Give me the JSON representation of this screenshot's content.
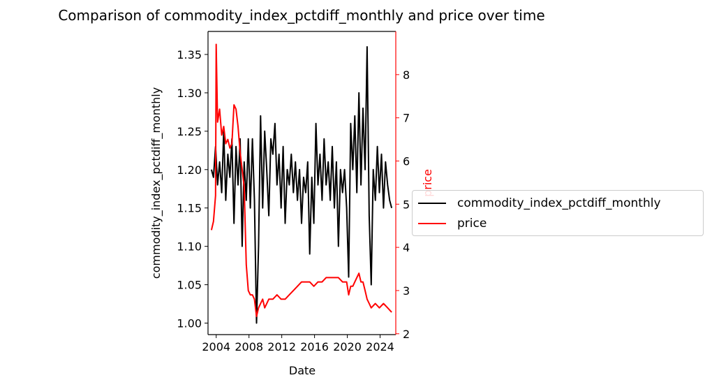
{
  "title": "Comparison of commodity_index_pctdiff_monthly and price over time",
  "chart_data": {
    "type": "line",
    "title": "Comparison of commodity_index_pctdiff_monthly and price over time",
    "xlabel": "Date",
    "ylabel": "commodity_index_pctdiff_monthly",
    "y2label": "price",
    "x_ticks": [
      "2004",
      "2008",
      "2012",
      "2016",
      "2020",
      "2024"
    ],
    "x_range": [
      "2003-01",
      "2025-12"
    ],
    "ylim": [
      0.985,
      1.38
    ],
    "y_ticks": [
      "1.00",
      "1.05",
      "1.10",
      "1.15",
      "1.20",
      "1.25",
      "1.30",
      "1.35"
    ],
    "y2lim": [
      1.98,
      9.0
    ],
    "y2_ticks": [
      "2",
      "3",
      "4",
      "5",
      "6",
      "7",
      "8"
    ],
    "legend_position": "right (outside plot)",
    "series": [
      {
        "name": "commodity_index_pctdiff_monthly",
        "axis": "left",
        "color": "#000000",
        "points": [
          [
            "2003-06",
            1.2
          ],
          [
            "2003-09",
            1.19
          ],
          [
            "2003-12",
            1.23
          ],
          [
            "2004-03",
            1.18
          ],
          [
            "2004-06",
            1.21
          ],
          [
            "2004-09",
            1.17
          ],
          [
            "2004-12",
            1.25
          ],
          [
            "2005-03",
            1.16
          ],
          [
            "2005-06",
            1.22
          ],
          [
            "2005-09",
            1.19
          ],
          [
            "2005-12",
            1.24
          ],
          [
            "2006-03",
            1.13
          ],
          [
            "2006-06",
            1.23
          ],
          [
            "2006-09",
            1.18
          ],
          [
            "2006-12",
            1.24
          ],
          [
            "2007-03",
            1.1
          ],
          [
            "2007-06",
            1.21
          ],
          [
            "2007-09",
            1.16
          ],
          [
            "2007-12",
            1.24
          ],
          [
            "2008-03",
            1.15
          ],
          [
            "2008-06",
            1.24
          ],
          [
            "2008-09",
            1.16
          ],
          [
            "2008-12",
            1.0
          ],
          [
            "2009-03",
            1.1
          ],
          [
            "2009-06",
            1.27
          ],
          [
            "2009-09",
            1.15
          ],
          [
            "2009-12",
            1.25
          ],
          [
            "2010-03",
            1.2
          ],
          [
            "2010-06",
            1.14
          ],
          [
            "2010-09",
            1.24
          ],
          [
            "2010-12",
            1.22
          ],
          [
            "2011-03",
            1.26
          ],
          [
            "2011-06",
            1.18
          ],
          [
            "2011-09",
            1.22
          ],
          [
            "2011-12",
            1.15
          ],
          [
            "2012-03",
            1.23
          ],
          [
            "2012-06",
            1.13
          ],
          [
            "2012-09",
            1.2
          ],
          [
            "2012-12",
            1.18
          ],
          [
            "2013-03",
            1.22
          ],
          [
            "2013-06",
            1.17
          ],
          [
            "2013-09",
            1.21
          ],
          [
            "2013-12",
            1.16
          ],
          [
            "2014-03",
            1.2
          ],
          [
            "2014-06",
            1.13
          ],
          [
            "2014-09",
            1.19
          ],
          [
            "2014-12",
            1.17
          ],
          [
            "2015-03",
            1.21
          ],
          [
            "2015-06",
            1.09
          ],
          [
            "2015-09",
            1.19
          ],
          [
            "2015-12",
            1.13
          ],
          [
            "2016-03",
            1.26
          ],
          [
            "2016-06",
            1.18
          ],
          [
            "2016-09",
            1.22
          ],
          [
            "2016-12",
            1.16
          ],
          [
            "2017-03",
            1.24
          ],
          [
            "2017-06",
            1.18
          ],
          [
            "2017-09",
            1.21
          ],
          [
            "2017-12",
            1.16
          ],
          [
            "2018-03",
            1.23
          ],
          [
            "2018-06",
            1.15
          ],
          [
            "2018-09",
            1.21
          ],
          [
            "2018-12",
            1.1
          ],
          [
            "2019-03",
            1.2
          ],
          [
            "2019-06",
            1.17
          ],
          [
            "2019-09",
            1.2
          ],
          [
            "2019-12",
            1.15
          ],
          [
            "2020-03",
            1.06
          ],
          [
            "2020-06",
            1.26
          ],
          [
            "2020-09",
            1.2
          ],
          [
            "2020-12",
            1.27
          ],
          [
            "2021-03",
            1.17
          ],
          [
            "2021-06",
            1.3
          ],
          [
            "2021-09",
            1.18
          ],
          [
            "2021-12",
            1.28
          ],
          [
            "2022-03",
            1.2
          ],
          [
            "2022-06",
            1.36
          ],
          [
            "2022-09",
            1.14
          ],
          [
            "2022-12",
            1.05
          ],
          [
            "2023-03",
            1.2
          ],
          [
            "2023-06",
            1.16
          ],
          [
            "2023-09",
            1.23
          ],
          [
            "2023-12",
            1.17
          ],
          [
            "2024-03",
            1.22
          ],
          [
            "2024-06",
            1.15
          ],
          [
            "2024-09",
            1.21
          ],
          [
            "2024-12",
            1.18
          ],
          [
            "2025-03",
            1.16
          ],
          [
            "2025-06",
            1.15
          ]
        ]
      },
      {
        "name": "price",
        "axis": "right",
        "color": "#ff0000",
        "points": [
          [
            "2003-06",
            4.4
          ],
          [
            "2003-09",
            4.6
          ],
          [
            "2003-12",
            5.2
          ],
          [
            "2004-01",
            8.7
          ],
          [
            "2004-03",
            6.9
          ],
          [
            "2004-06",
            7.2
          ],
          [
            "2004-09",
            6.6
          ],
          [
            "2004-12",
            6.8
          ],
          [
            "2005-03",
            6.4
          ],
          [
            "2005-06",
            6.5
          ],
          [
            "2005-09",
            6.3
          ],
          [
            "2005-12",
            6.4
          ],
          [
            "2006-03",
            7.3
          ],
          [
            "2006-06",
            7.2
          ],
          [
            "2006-09",
            6.8
          ],
          [
            "2006-12",
            6.2
          ],
          [
            "2007-03",
            5.8
          ],
          [
            "2007-06",
            5.4
          ],
          [
            "2007-09",
            3.6
          ],
          [
            "2007-12",
            3.0
          ],
          [
            "2008-03",
            2.9
          ],
          [
            "2008-06",
            2.9
          ],
          [
            "2008-09",
            2.8
          ],
          [
            "2008-12",
            2.4
          ],
          [
            "2009-03",
            2.6
          ],
          [
            "2009-06",
            2.7
          ],
          [
            "2009-09",
            2.8
          ],
          [
            "2009-12",
            2.6
          ],
          [
            "2010-06",
            2.8
          ],
          [
            "2010-12",
            2.8
          ],
          [
            "2011-06",
            2.9
          ],
          [
            "2011-12",
            2.8
          ],
          [
            "2012-06",
            2.8
          ],
          [
            "2012-12",
            2.9
          ],
          [
            "2013-06",
            3.0
          ],
          [
            "2013-12",
            3.1
          ],
          [
            "2014-06",
            3.2
          ],
          [
            "2014-12",
            3.2
          ],
          [
            "2015-06",
            3.2
          ],
          [
            "2015-12",
            3.1
          ],
          [
            "2016-06",
            3.2
          ],
          [
            "2016-12",
            3.2
          ],
          [
            "2017-06",
            3.3
          ],
          [
            "2017-12",
            3.3
          ],
          [
            "2018-06",
            3.3
          ],
          [
            "2018-12",
            3.3
          ],
          [
            "2019-06",
            3.2
          ],
          [
            "2019-12",
            3.2
          ],
          [
            "2020-03",
            2.9
          ],
          [
            "2020-06",
            3.1
          ],
          [
            "2020-09",
            3.1
          ],
          [
            "2020-12",
            3.2
          ],
          [
            "2021-03",
            3.3
          ],
          [
            "2021-06",
            3.4
          ],
          [
            "2021-09",
            3.2
          ],
          [
            "2021-12",
            3.2
          ],
          [
            "2022-03",
            3.0
          ],
          [
            "2022-06",
            2.8
          ],
          [
            "2022-09",
            2.7
          ],
          [
            "2022-12",
            2.6
          ],
          [
            "2023-06",
            2.7
          ],
          [
            "2023-12",
            2.6
          ],
          [
            "2024-06",
            2.7
          ],
          [
            "2024-12",
            2.6
          ],
          [
            "2025-06",
            2.5
          ]
        ]
      }
    ]
  }
}
